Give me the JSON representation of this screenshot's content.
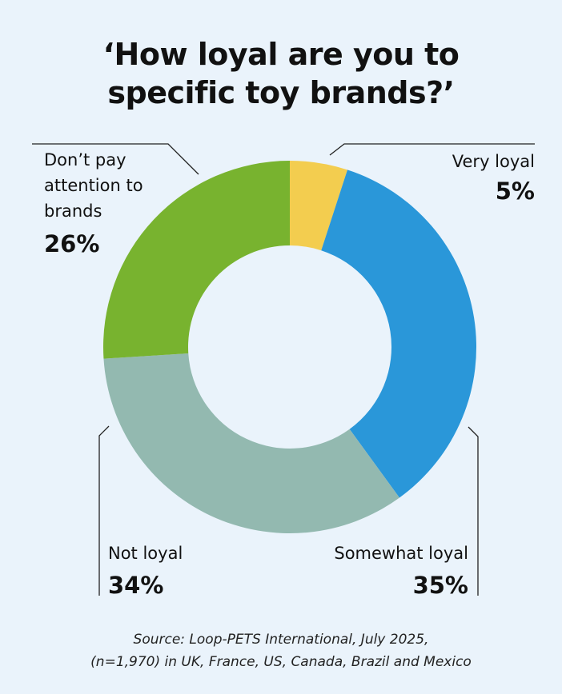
{
  "chart_data": {
    "type": "donut",
    "title": [
      "‘How loyal are you to",
      "specific toy brands?’"
    ],
    "categories": [
      "Very loyal",
      "Somewhat loyal",
      "Not loyal",
      "Don’t pay attention to brands"
    ],
    "values": [
      5,
      35,
      34,
      26
    ],
    "value_labels": [
      "5%",
      "35%",
      "34%",
      "26%"
    ],
    "colors": [
      "#f3cd4f",
      "#2a97d9",
      "#93b9b0",
      "#78b32f"
    ],
    "source": [
      "Source: Loop-PETS International, July 2025,",
      "(n=1,970) in UK, France, US, Canada, Brazil and Mexico"
    ]
  }
}
